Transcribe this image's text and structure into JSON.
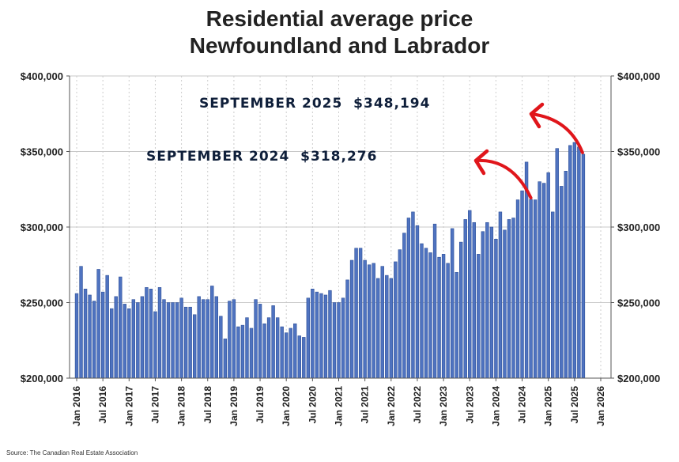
{
  "chart_data": {
    "type": "bar",
    "title_line1": "Residential average price",
    "title_line2": "Newfoundland and Labrador",
    "start_month": "Jan 2016",
    "ylim": [
      200000,
      400000
    ],
    "y_ticks": [
      200000,
      250000,
      300000,
      350000,
      400000
    ],
    "y_tick_labels": [
      "$200,000",
      "$250,000",
      "$300,000",
      "$350,000",
      "$400,000"
    ],
    "x_tick_labels": [
      "Jan 2016",
      "Jul 2016",
      "Jan 2017",
      "Jul 2017",
      "Jan 2018",
      "Jul 2018",
      "Jan 2019",
      "Jul 2019",
      "Jan 2020",
      "Jul 2020",
      "Jan 2021",
      "Jul 2021",
      "Jan 2022",
      "Jul 2022",
      "Jan 2023",
      "Jul 2023",
      "Jan 2024",
      "Jul 2024",
      "Jan 2025",
      "Jul 2025",
      "Jan 2026"
    ],
    "values": [
      256000,
      274000,
      259000,
      255000,
      251000,
      272000,
      257000,
      268000,
      246000,
      254000,
      267000,
      249000,
      246000,
      252000,
      250000,
      254000,
      260000,
      259000,
      244000,
      260000,
      252000,
      250000,
      250000,
      250000,
      253000,
      247000,
      247000,
      242000,
      254000,
      252000,
      252000,
      261000,
      254000,
      241000,
      226000,
      251000,
      252000,
      234000,
      235000,
      240000,
      233000,
      252000,
      249000,
      236000,
      240000,
      248000,
      240000,
      234000,
      230000,
      233000,
      236000,
      228000,
      227000,
      253000,
      259000,
      257000,
      256000,
      255000,
      258000,
      250000,
      250000,
      253000,
      265000,
      278000,
      286000,
      286000,
      278000,
      275000,
      276000,
      266000,
      274000,
      268000,
      266000,
      277000,
      285000,
      296000,
      306000,
      310000,
      301000,
      289000,
      286000,
      283000,
      302000,
      280000,
      282000,
      276000,
      299000,
      270000,
      290000,
      305000,
      311000,
      303000,
      282000,
      297000,
      303000,
      300000,
      292000,
      310000,
      298000,
      305000,
      306000,
      318000,
      324000,
      343000,
      318276,
      318000,
      330000,
      329000,
      336000,
      310000,
      352000,
      327000,
      337000,
      354000,
      356000,
      353000,
      348194
    ],
    "bar_color": "#4f73c0",
    "annotations": [
      {
        "label": "SEPTEMBER 2025  $348,194",
        "month_index": 116
      },
      {
        "label": "SEPTEMBER 2024  $318,276",
        "month_index": 104
      }
    ],
    "arrow_color": "#e0161b",
    "source": "Source: The Canadian Real Estate Association"
  }
}
